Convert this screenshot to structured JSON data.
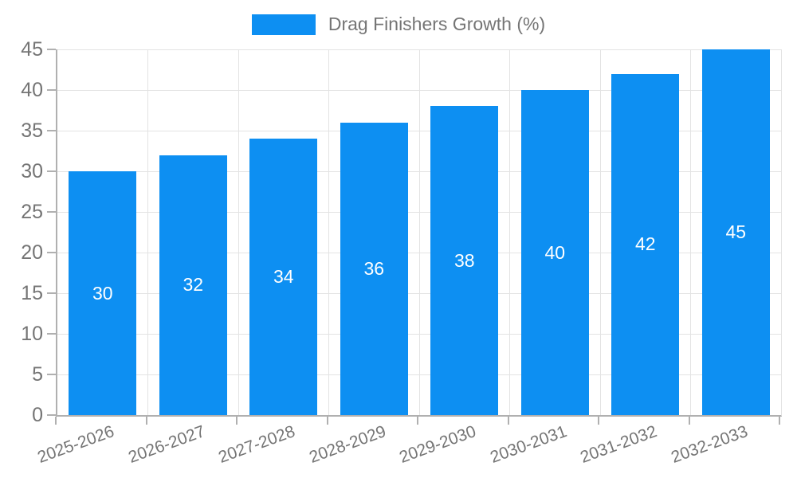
{
  "chart_data": {
    "type": "bar",
    "title": "",
    "legend": "Drag Finishers Growth (%)",
    "legend_position": "top-center",
    "categories": [
      "2025-2026",
      "2026-2027",
      "2027-2028",
      "2028-2029",
      "2029-2030",
      "2030-2031",
      "2031-2032",
      "2032-2033"
    ],
    "values": [
      30,
      32,
      34,
      36,
      38,
      40,
      42,
      45
    ],
    "value_labels": [
      "30",
      "32",
      "34",
      "36",
      "38",
      "40",
      "42",
      "45"
    ],
    "xlabel": "",
    "ylabel": "",
    "ylim": [
      0,
      45
    ],
    "yticks": [
      0,
      5,
      10,
      15,
      20,
      25,
      30,
      35,
      40,
      45
    ],
    "grid": "on",
    "colors": {
      "bar": "#0d8ff2",
      "value_label": "#ffffff",
      "axis_line": "#b0b0b0",
      "gridline": "#e3e3e3",
      "tick_label": "#757575",
      "legend_text": "#757575",
      "background": "#ffffff"
    }
  }
}
